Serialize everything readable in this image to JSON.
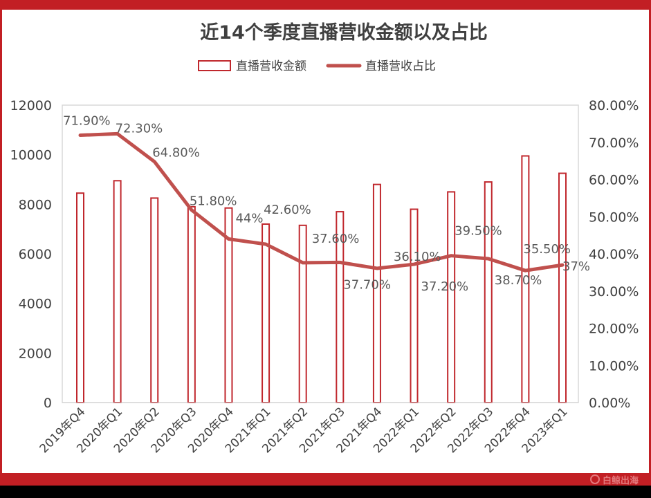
{
  "chart_data": {
    "type": "bar",
    "title": "近14个季度直播营收金额以及占比",
    "categories": [
      "2019年Q4",
      "2020年Q1",
      "2020年Q2",
      "2020年Q3",
      "2020年Q4",
      "2021年Q1",
      "2021年Q2",
      "2021年Q3",
      "2021年Q4",
      "2022年Q1",
      "2022年Q2",
      "2022年Q3",
      "2022年Q4",
      "2023年Q1"
    ],
    "series": [
      {
        "name": "直播营收金额",
        "type": "bar",
        "axis": "left",
        "values": [
          8450,
          8950,
          8250,
          7900,
          7850,
          7200,
          7150,
          7700,
          8800,
          7800,
          8500,
          8900,
          9950,
          9250
        ]
      },
      {
        "name": "直播营收占比",
        "type": "line",
        "axis": "right",
        "values": [
          71.9,
          72.3,
          64.8,
          51.8,
          44.0,
          42.6,
          37.6,
          37.7,
          36.1,
          37.2,
          39.5,
          38.7,
          35.5,
          37.0
        ],
        "labels": [
          "71.90%",
          "72.30%",
          "64.80%",
          "51.80%",
          "44%",
          "42.60%",
          "37.60%",
          "37.70%",
          "36.10%",
          "37.20%",
          "39.50%",
          "38.70%",
          "35.50%",
          "37%"
        ]
      }
    ],
    "y_left": {
      "min": 0,
      "max": 12000,
      "ticks": [
        "0",
        "2000",
        "4000",
        "6000",
        "8000",
        "10000",
        "12000"
      ]
    },
    "y_right": {
      "min": 0,
      "max": 80,
      "ticks": [
        "0.00%",
        "10.00%",
        "20.00%",
        "30.00%",
        "40.00%",
        "50.00%",
        "60.00%",
        "70.00%",
        "80.00%"
      ]
    },
    "grid": false,
    "legend_position": "top-center",
    "colors": {
      "bar_stroke": "#c0272d",
      "line": "#c0504d",
      "frame": "#c21f24"
    }
  },
  "watermark": "白鲸出海"
}
